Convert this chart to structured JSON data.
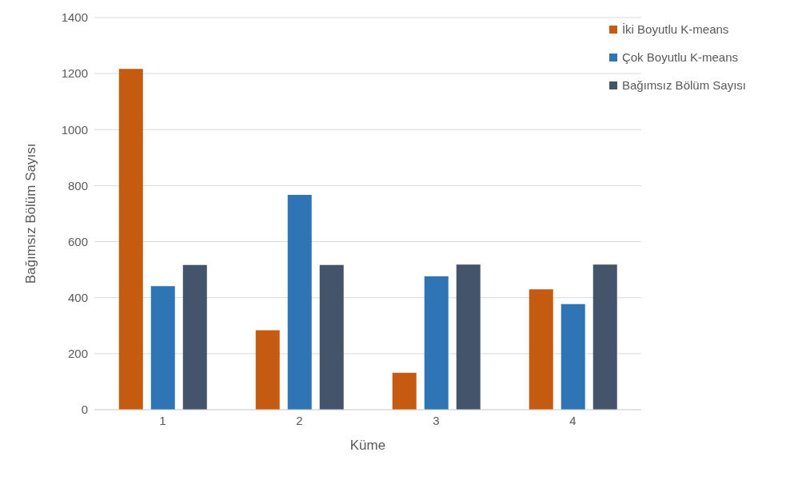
{
  "chart_data": {
    "type": "bar",
    "xlabel": "Küme",
    "ylabel": "Bağımsız Bölüm Sayısı",
    "categories": [
      "1",
      "2",
      "3",
      "4"
    ],
    "series": [
      {
        "name": "İki Boyutlu K-means",
        "color": "#c55a11",
        "values": [
          1217,
          284,
          132,
          430
        ]
      },
      {
        "name": "Çok Boyutlu K-means",
        "color": "#2e75b6",
        "values": [
          441,
          767,
          476,
          377
        ]
      },
      {
        "name": "Bağımsız Bölüm Sayısı",
        "color": "#44546a",
        "values": [
          517,
          517,
          518,
          518
        ]
      }
    ],
    "ylim": [
      0,
      1400
    ],
    "yticks": [
      0,
      200,
      400,
      600,
      800,
      1000,
      1200,
      1400
    ],
    "grid": "y",
    "legend": "top right"
  }
}
